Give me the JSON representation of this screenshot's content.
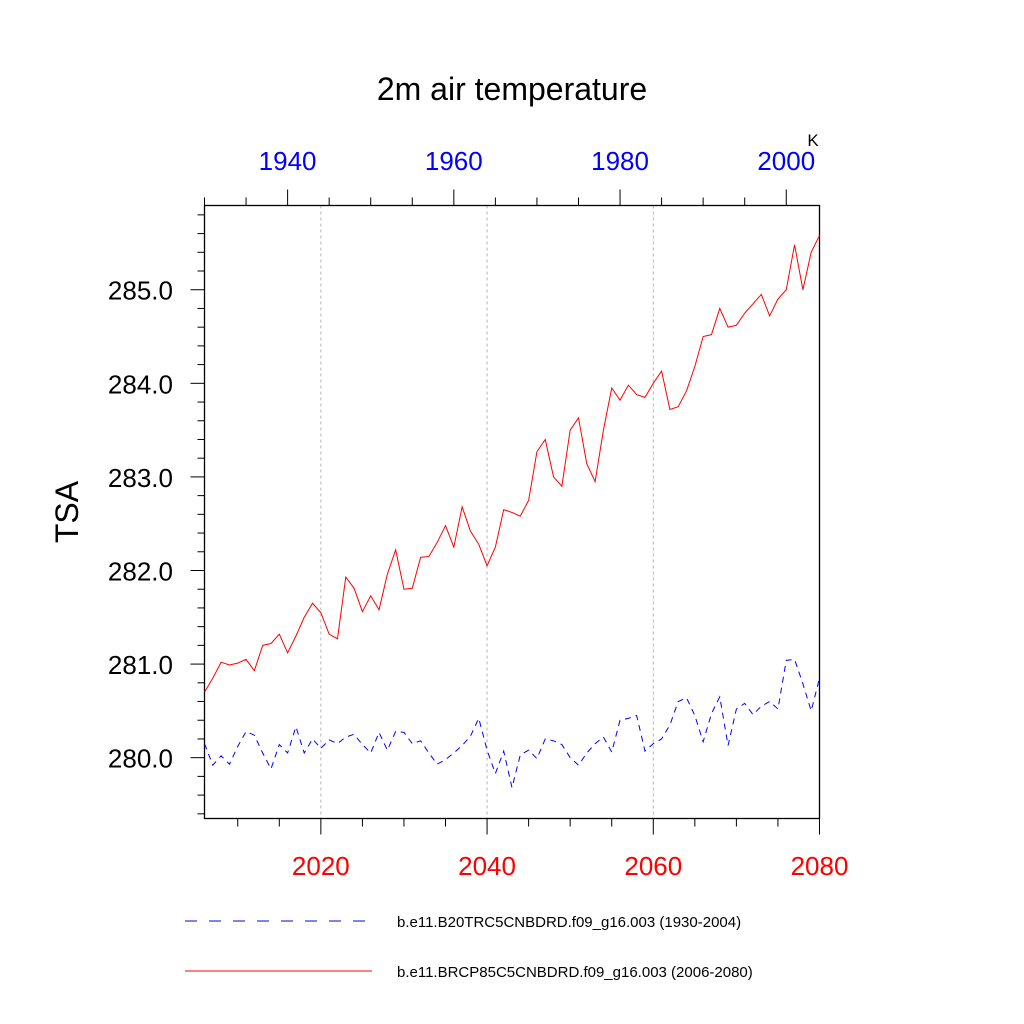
{
  "chart_data": {
    "type": "line",
    "title": "2m air temperature",
    "ylabel": "TSA",
    "units": "K",
    "ylim": [
      279.35,
      285.9
    ],
    "yticks": [
      "280.0",
      "281.0",
      "282.0",
      "283.0",
      "284.0",
      "285.0"
    ],
    "bottom_axis": {
      "range": [
        2006,
        2080
      ],
      "ticks": [
        "2020",
        "2040",
        "2060",
        "2080"
      ],
      "color": "#ff0000"
    },
    "top_axis": {
      "range": [
        1930,
        2004
      ],
      "ticks": [
        "1940",
        "1960",
        "1980",
        "2000"
      ],
      "color": "#0000ff"
    },
    "gridlines_at": [
      2020,
      2040,
      2060
    ],
    "series": [
      {
        "name": "b.e11.B20TRC5CNBDRD.f09_g16.003 (1930-2004)",
        "color": "#0000ff",
        "style": "dashed",
        "axis": "top",
        "x": [
          1930,
          1931,
          1932,
          1933,
          1934,
          1935,
          1936,
          1937,
          1938,
          1939,
          1940,
          1941,
          1942,
          1943,
          1944,
          1945,
          1946,
          1947,
          1948,
          1949,
          1950,
          1951,
          1952,
          1953,
          1954,
          1955,
          1956,
          1957,
          1958,
          1959,
          1960,
          1961,
          1962,
          1963,
          1964,
          1965,
          1966,
          1967,
          1968,
          1969,
          1970,
          1971,
          1972,
          1973,
          1974,
          1975,
          1976,
          1977,
          1978,
          1979,
          1980,
          1981,
          1982,
          1983,
          1984,
          1985,
          1986,
          1987,
          1988,
          1989,
          1990,
          1991,
          1992,
          1993,
          1994,
          1995,
          1996,
          1997,
          1998,
          1999,
          2000,
          2001,
          2002,
          2003,
          2004
        ],
        "values": [
          280.15,
          279.92,
          280.02,
          279.93,
          280.12,
          280.28,
          280.24,
          280.05,
          279.88,
          280.14,
          280.05,
          280.33,
          280.05,
          280.2,
          280.1,
          280.19,
          280.15,
          280.22,
          280.25,
          280.14,
          280.05,
          280.27,
          280.08,
          280.28,
          280.27,
          280.15,
          280.18,
          280.05,
          279.93,
          279.98,
          280.05,
          280.13,
          280.23,
          280.42,
          280.08,
          279.83,
          280.07,
          279.68,
          280.03,
          280.08,
          279.99,
          280.2,
          280.18,
          280.14,
          280.0,
          279.92,
          280.05,
          280.15,
          280.22,
          280.06,
          280.4,
          280.42,
          280.45,
          280.07,
          280.15,
          280.2,
          280.35,
          280.6,
          280.64,
          280.45,
          280.17,
          280.47,
          280.65,
          280.13,
          280.52,
          280.58,
          280.46,
          280.55,
          280.6,
          280.52,
          281.04,
          281.05,
          280.79,
          280.5,
          280.85
        ]
      },
      {
        "name": "b.e11.BRCP85C5CNBDRD.f09_g16.003 (2006-2080)",
        "color": "#ff0000",
        "style": "solid",
        "axis": "bottom",
        "x": [
          2006,
          2007,
          2008,
          2009,
          2010,
          2011,
          2012,
          2013,
          2014,
          2015,
          2016,
          2017,
          2018,
          2019,
          2020,
          2021,
          2022,
          2023,
          2024,
          2025,
          2026,
          2027,
          2028,
          2029,
          2030,
          2031,
          2032,
          2033,
          2034,
          2035,
          2036,
          2037,
          2038,
          2039,
          2040,
          2041,
          2042,
          2043,
          2044,
          2045,
          2046,
          2047,
          2048,
          2049,
          2050,
          2051,
          2052,
          2053,
          2054,
          2055,
          2056,
          2057,
          2058,
          2059,
          2060,
          2061,
          2062,
          2063,
          2064,
          2065,
          2066,
          2067,
          2068,
          2069,
          2070,
          2071,
          2072,
          2073,
          2074,
          2075,
          2076,
          2077,
          2078,
          2079,
          2080
        ],
        "values": [
          280.7,
          280.85,
          281.02,
          280.99,
          281.01,
          281.05,
          280.93,
          281.2,
          281.22,
          281.32,
          281.12,
          281.3,
          281.5,
          281.65,
          281.55,
          281.32,
          281.27,
          281.93,
          281.81,
          281.56,
          281.73,
          281.58,
          281.96,
          282.22,
          281.8,
          281.81,
          282.14,
          282.15,
          282.3,
          282.48,
          282.25,
          282.68,
          282.42,
          282.28,
          282.05,
          282.25,
          282.65,
          282.62,
          282.58,
          282.75,
          283.27,
          283.4,
          283.0,
          282.9,
          283.5,
          283.63,
          283.14,
          282.95,
          283.5,
          283.95,
          283.82,
          283.98,
          283.88,
          283.85,
          284.0,
          284.13,
          283.72,
          283.75,
          283.92,
          284.18,
          284.5,
          284.52,
          284.8,
          284.6,
          284.62,
          284.75,
          284.85,
          284.95,
          284.72,
          284.9,
          285.0,
          285.48,
          285.0,
          285.4,
          285.58
        ]
      }
    ]
  }
}
